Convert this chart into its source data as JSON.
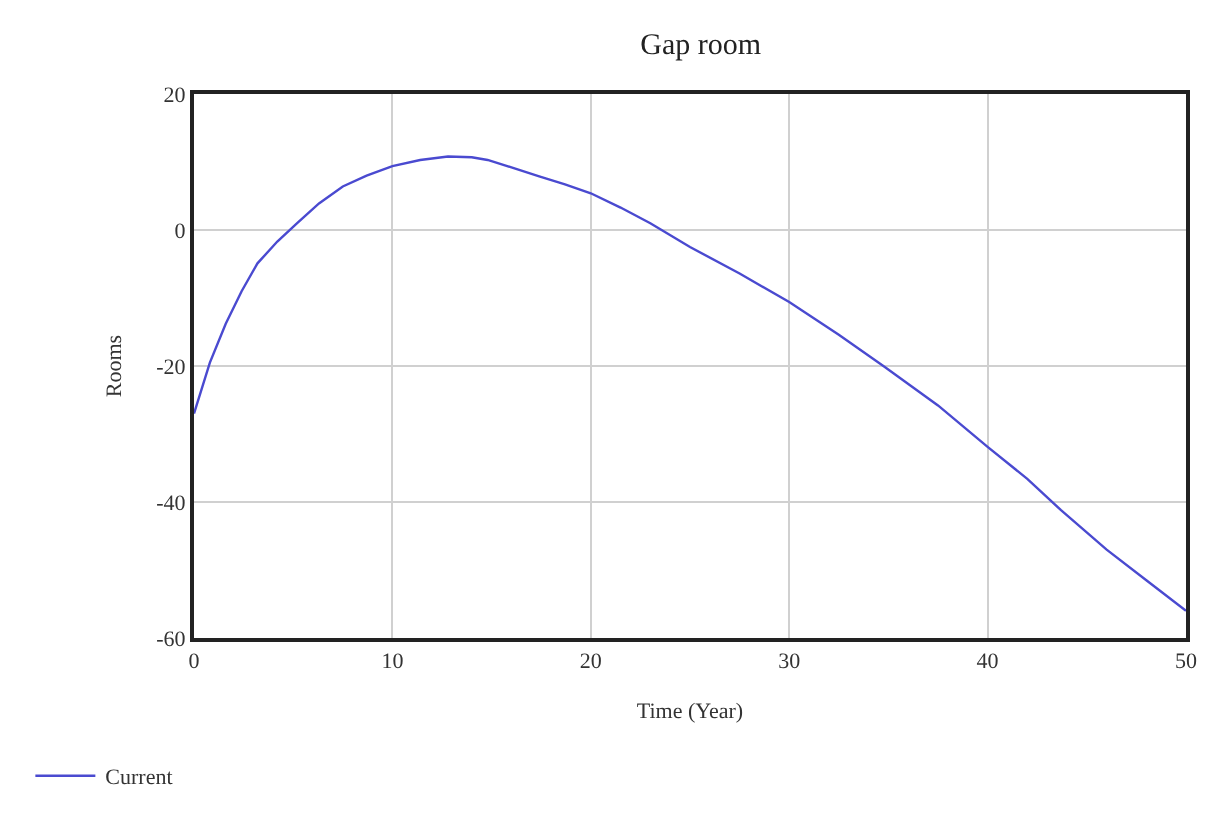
{
  "chart_data": {
    "type": "line",
    "title": "Gap room",
    "xlabel": "Time (Year)",
    "ylabel": "Rooms",
    "xlim": [
      0,
      50
    ],
    "xticks": [
      0,
      10,
      20,
      30,
      40,
      50
    ],
    "ylim": [
      -60,
      20
    ],
    "yticks": [
      -60,
      -40,
      -20,
      0,
      20
    ],
    "grid": true,
    "legend": "bottom left",
    "marker": "none",
    "line_style": "solid",
    "series": [
      {
        "name": "Current",
        "color": "#4a4ad0",
        "x": [
          0,
          0.8,
          1.6,
          2.4,
          3.2,
          4.2,
          5.2,
          6.3,
          7.5,
          8.7,
          10,
          11.4,
          12.8,
          14,
          14.8,
          16,
          17.4,
          18.7,
          20,
          21.5,
          23,
          25,
          27.5,
          30,
          32.5,
          34.8,
          37.5,
          40,
          42,
          43.7,
          46,
          48,
          50
        ],
        "values": [
          -27,
          -19.5,
          -13.8,
          -9,
          -4.9,
          -1.7,
          1,
          3.9,
          6.4,
          8,
          9.4,
          10.3,
          10.8,
          10.7,
          10.3,
          9.2,
          7.9,
          6.7,
          5.4,
          3.3,
          1,
          -2.5,
          -6.4,
          -10.6,
          -15.4,
          -20.1,
          -25.8,
          -31.9,
          -36.6,
          -41.2,
          -47,
          -51.5,
          -56
        ]
      }
    ]
  }
}
